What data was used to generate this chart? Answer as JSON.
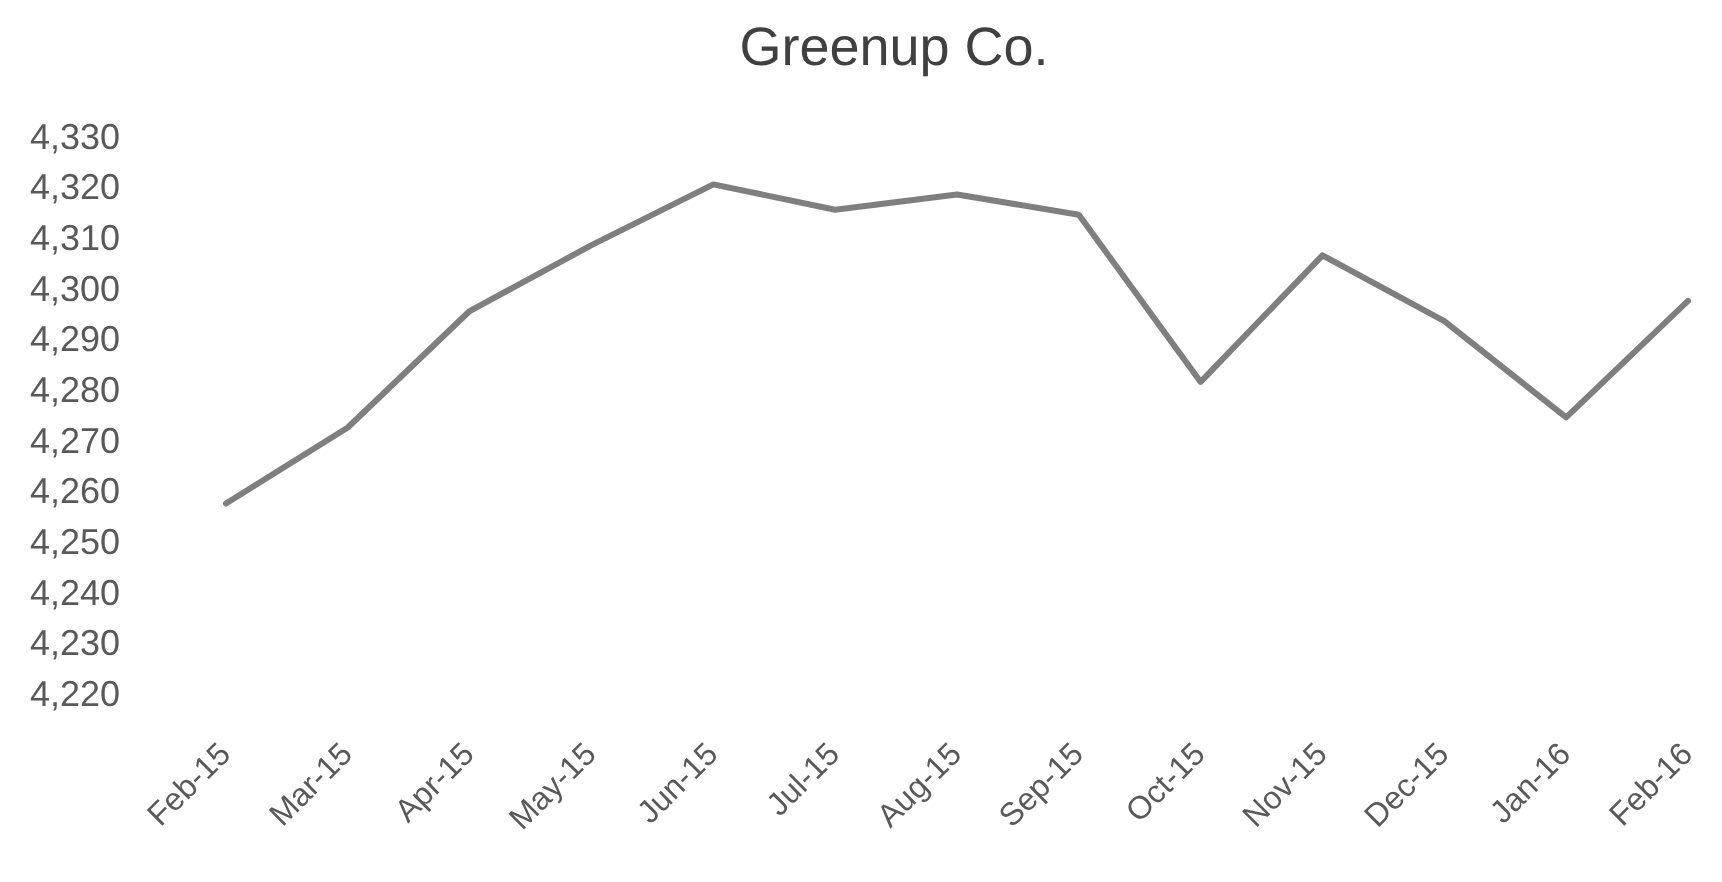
{
  "chart_data": {
    "type": "line",
    "title": "Greenup Co.",
    "categories": [
      "Feb-15",
      "Mar-15",
      "Apr-15",
      "May-15",
      "Jun-15",
      "Jul-15",
      "Aug-15",
      "Sep-15",
      "Oct-15",
      "Nov-15",
      "Dec-15",
      "Jan-16",
      "Feb-16"
    ],
    "series": [
      {
        "color": "#7f7f7f",
        "values": [
          4258,
          4273,
          4296,
          4309,
          4321,
          4316,
          4319,
          4315,
          4282,
          4307,
          4294,
          4275,
          4298
        ]
      }
    ],
    "ylim": [
      4220,
      4330
    ],
    "yticks": [
      {
        "value": 4220,
        "label": "4,220"
      },
      {
        "value": 4230,
        "label": "4,230"
      },
      {
        "value": 4240,
        "label": "4,240"
      },
      {
        "value": 4250,
        "label": "4,250"
      },
      {
        "value": 4260,
        "label": "4,260"
      },
      {
        "value": 4270,
        "label": "4,270"
      },
      {
        "value": 4280,
        "label": "4,280"
      },
      {
        "value": 4290,
        "label": "4,290"
      },
      {
        "value": 4300,
        "label": "4,300"
      },
      {
        "value": 4310,
        "label": "4,310"
      },
      {
        "value": 4320,
        "label": "4,320"
      },
      {
        "value": 4330,
        "label": "4,330"
      }
    ],
    "grid": false,
    "legend": false,
    "marker": "none"
  }
}
